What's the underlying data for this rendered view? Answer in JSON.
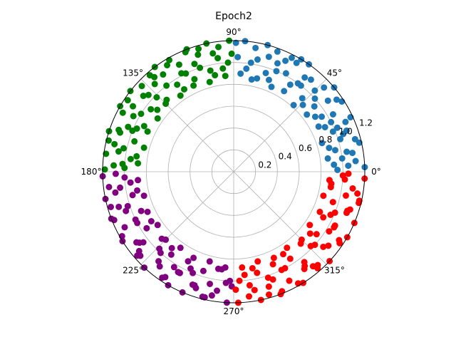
{
  "chart_data": {
    "type": "scatter",
    "projection": "polar",
    "title": "Epoch2",
    "theta_ticks": [
      "0°",
      "45°",
      "90°",
      "135°",
      "180°",
      "225°",
      "270°",
      "315°"
    ],
    "r_ticks": [
      "0.2",
      "0.4",
      "0.6",
      "0.8",
      "1.0",
      "1.2"
    ],
    "r_tick_values": [
      0.2,
      0.4,
      0.6,
      0.8,
      1.0,
      1.2
    ],
    "rlim": [
      0,
      1.2
    ],
    "grid": true,
    "series": [
      {
        "color": "#1f77b4",
        "theta_range_deg": [
          0,
          90
        ],
        "points": [
          [
            85,
            1.2
          ],
          [
            80,
            1.15
          ],
          [
            75,
            1.2
          ],
          [
            70,
            1.17
          ],
          [
            65,
            1.12
          ],
          [
            60,
            1.15
          ],
          [
            55,
            1.2
          ],
          [
            50,
            1.1
          ],
          [
            45,
            1.05
          ],
          [
            40,
            1.2
          ],
          [
            35,
            1.15
          ],
          [
            30,
            1.05
          ],
          [
            25,
            1.18
          ],
          [
            20,
            1.1
          ],
          [
            15,
            1.15
          ],
          [
            10,
            1.05
          ],
          [
            5,
            1.12
          ],
          [
            2,
            1.2
          ],
          [
            88,
            1.05
          ],
          [
            83,
            0.95
          ],
          [
            78,
            1.05
          ],
          [
            72,
            0.95
          ],
          [
            67,
            1.0
          ],
          [
            62,
            1.02
          ],
          [
            57,
            0.95
          ],
          [
            52,
            1.0
          ],
          [
            47,
            0.92
          ],
          [
            42,
            1.0
          ],
          [
            37,
            1.08
          ],
          [
            32,
            0.95
          ],
          [
            27,
            1.0
          ],
          [
            22,
            0.98
          ],
          [
            17,
            1.02
          ],
          [
            12,
            0.95
          ],
          [
            7,
            1.0
          ],
          [
            4,
            0.92
          ],
          [
            86,
            0.9
          ],
          [
            76,
            0.88
          ],
          [
            66,
            0.85
          ],
          [
            58,
            0.87
          ],
          [
            48,
            0.82
          ],
          [
            38,
            0.85
          ],
          [
            28,
            0.88
          ],
          [
            18,
            0.85
          ],
          [
            8,
            0.87
          ],
          [
            73,
            1.1
          ],
          [
            63,
            1.17
          ],
          [
            53,
            1.08
          ],
          [
            43,
            1.13
          ],
          [
            33,
            1.18
          ],
          [
            23,
            1.03
          ],
          [
            13,
            1.18
          ],
          [
            3,
            1.05
          ],
          [
            81,
            1.01
          ],
          [
            69,
            0.9
          ],
          [
            59,
            1.2
          ],
          [
            44,
            0.88
          ],
          [
            34,
            0.9
          ],
          [
            24,
            1.12
          ],
          [
            14,
            0.9
          ],
          [
            89,
            1.18
          ],
          [
            79,
            0.86
          ],
          [
            54,
            1.0
          ],
          [
            39,
            0.95
          ],
          [
            19,
            1.06
          ],
          [
            9,
            1.1
          ],
          [
            1,
            0.95
          ],
          [
            68,
            1.07
          ],
          [
            26,
            0.93
          ]
        ]
      },
      {
        "color": "#008000",
        "theta_range_deg": [
          90,
          180
        ],
        "points": [
          [
            92,
            1.2
          ],
          [
            97,
            1.15
          ],
          [
            102,
            1.2
          ],
          [
            107,
            1.12
          ],
          [
            112,
            1.18
          ],
          [
            117,
            1.1
          ],
          [
            122,
            1.15
          ],
          [
            127,
            1.2
          ],
          [
            132,
            1.08
          ],
          [
            137,
            1.15
          ],
          [
            142,
            1.2
          ],
          [
            147,
            1.1
          ],
          [
            152,
            1.15
          ],
          [
            157,
            1.05
          ],
          [
            162,
            1.2
          ],
          [
            167,
            1.12
          ],
          [
            172,
            1.18
          ],
          [
            177,
            1.1
          ],
          [
            93,
            1.0
          ],
          [
            98,
            1.05
          ],
          [
            103,
            0.95
          ],
          [
            108,
            1.0
          ],
          [
            113,
            0.92
          ],
          [
            118,
            1.02
          ],
          [
            123,
            0.95
          ],
          [
            128,
            1.0
          ],
          [
            133,
            0.9
          ],
          [
            138,
            1.05
          ],
          [
            143,
            0.95
          ],
          [
            148,
            1.0
          ],
          [
            153,
            0.92
          ],
          [
            158,
            1.0
          ],
          [
            163,
            0.95
          ],
          [
            168,
            1.03
          ],
          [
            173,
            0.95
          ],
          [
            178,
            1.0
          ],
          [
            95,
            0.88
          ],
          [
            105,
            0.85
          ],
          [
            115,
            0.87
          ],
          [
            125,
            0.85
          ],
          [
            135,
            0.88
          ],
          [
            145,
            0.85
          ],
          [
            155,
            0.87
          ],
          [
            165,
            0.85
          ],
          [
            175,
            0.88
          ],
          [
            100,
            1.1
          ],
          [
            110,
            1.05
          ],
          [
            120,
            1.18
          ],
          [
            130,
            1.13
          ],
          [
            140,
            1.08
          ],
          [
            150,
            1.2
          ],
          [
            160,
            1.12
          ],
          [
            170,
            1.07
          ],
          [
            179,
            1.18
          ],
          [
            96,
            0.95
          ],
          [
            106,
            1.17
          ],
          [
            116,
            1.0
          ],
          [
            126,
            1.1
          ],
          [
            136,
            0.98
          ],
          [
            146,
            1.17
          ],
          [
            156,
            0.97
          ],
          [
            166,
            1.18
          ],
          [
            176,
            1.02
          ],
          [
            91,
            1.08
          ],
          [
            101,
            0.9
          ],
          [
            111,
            1.2
          ],
          [
            121,
            0.88
          ],
          [
            131,
            1.17
          ],
          [
            141,
            0.9
          ],
          [
            151,
            1.05
          ],
          [
            161,
            1.1
          ],
          [
            171,
            0.9
          ]
        ]
      },
      {
        "color": "#800080",
        "theta_range_deg": [
          180,
          270
        ],
        "points": [
          [
            182,
            1.2
          ],
          [
            187,
            1.15
          ],
          [
            192,
            1.2
          ],
          [
            197,
            1.1
          ],
          [
            202,
            1.18
          ],
          [
            207,
            1.12
          ],
          [
            212,
            1.2
          ],
          [
            217,
            1.08
          ],
          [
            222,
            1.15
          ],
          [
            227,
            1.2
          ],
          [
            232,
            1.1
          ],
          [
            237,
            1.15
          ],
          [
            242,
            1.05
          ],
          [
            247,
            1.2
          ],
          [
            252,
            1.12
          ],
          [
            257,
            1.18
          ],
          [
            262,
            1.1
          ],
          [
            267,
            1.2
          ],
          [
            183,
            1.0
          ],
          [
            188,
            1.05
          ],
          [
            193,
            0.95
          ],
          [
            198,
            1.02
          ],
          [
            203,
            0.92
          ],
          [
            208,
            1.0
          ],
          [
            213,
            0.95
          ],
          [
            218,
            1.05
          ],
          [
            223,
            0.9
          ],
          [
            228,
            1.0
          ],
          [
            233,
            0.95
          ],
          [
            238,
            1.03
          ],
          [
            243,
            0.92
          ],
          [
            248,
            1.0
          ],
          [
            253,
            0.95
          ],
          [
            258,
            1.05
          ],
          [
            263,
            0.9
          ],
          [
            268,
            1.0
          ],
          [
            185,
            0.88
          ],
          [
            195,
            0.85
          ],
          [
            205,
            0.87
          ],
          [
            215,
            0.85
          ],
          [
            225,
            0.88
          ],
          [
            235,
            0.85
          ],
          [
            245,
            0.87
          ],
          [
            255,
            0.85
          ],
          [
            265,
            0.88
          ],
          [
            190,
            1.1
          ],
          [
            200,
            1.05
          ],
          [
            210,
            1.18
          ],
          [
            220,
            1.13
          ],
          [
            230,
            1.07
          ],
          [
            240,
            1.2
          ],
          [
            250,
            1.1
          ],
          [
            260,
            1.15
          ],
          [
            269,
            1.05
          ],
          [
            186,
            0.95
          ],
          [
            196,
            1.17
          ],
          [
            206,
            1.0
          ],
          [
            216,
            1.1
          ],
          [
            226,
            0.98
          ],
          [
            236,
            1.17
          ],
          [
            246,
            0.97
          ],
          [
            256,
            1.18
          ],
          [
            266,
            1.02
          ],
          [
            181,
            1.08
          ],
          [
            191,
            0.9
          ],
          [
            201,
            1.2
          ],
          [
            211,
            0.88
          ],
          [
            221,
            1.17
          ],
          [
            231,
            0.9
          ],
          [
            241,
            1.05
          ],
          [
            251,
            1.1
          ],
          [
            261,
            0.9
          ]
        ]
      },
      {
        "color": "#ff0000",
        "theta_range_deg": [
          270,
          360
        ],
        "points": [
          [
            272,
            1.2
          ],
          [
            277,
            1.15
          ],
          [
            282,
            1.2
          ],
          [
            287,
            1.1
          ],
          [
            292,
            1.18
          ],
          [
            297,
            1.12
          ],
          [
            302,
            1.2
          ],
          [
            307,
            1.08
          ],
          [
            312,
            1.15
          ],
          [
            317,
            1.2
          ],
          [
            322,
            1.1
          ],
          [
            327,
            1.15
          ],
          [
            332,
            1.05
          ],
          [
            337,
            1.2
          ],
          [
            342,
            1.12
          ],
          [
            347,
            1.18
          ],
          [
            352,
            1.1
          ],
          [
            357,
            1.2
          ],
          [
            273,
            1.0
          ],
          [
            278,
            1.05
          ],
          [
            283,
            0.95
          ],
          [
            288,
            1.02
          ],
          [
            293,
            0.92
          ],
          [
            298,
            1.0
          ],
          [
            303,
            0.95
          ],
          [
            308,
            1.05
          ],
          [
            313,
            0.9
          ],
          [
            318,
            1.0
          ],
          [
            323,
            0.95
          ],
          [
            328,
            1.03
          ],
          [
            333,
            0.92
          ],
          [
            338,
            1.0
          ],
          [
            343,
            0.95
          ],
          [
            348,
            1.05
          ],
          [
            353,
            0.9
          ],
          [
            358,
            1.0
          ],
          [
            275,
            0.88
          ],
          [
            285,
            0.85
          ],
          [
            295,
            0.87
          ],
          [
            305,
            0.85
          ],
          [
            315,
            0.88
          ],
          [
            325,
            0.85
          ],
          [
            335,
            0.87
          ],
          [
            345,
            0.85
          ],
          [
            355,
            0.88
          ],
          [
            280,
            1.1
          ],
          [
            290,
            1.05
          ],
          [
            300,
            1.18
          ],
          [
            310,
            1.13
          ],
          [
            320,
            1.07
          ],
          [
            330,
            1.2
          ],
          [
            340,
            1.1
          ],
          [
            350,
            1.15
          ],
          [
            359,
            1.05
          ],
          [
            276,
            0.95
          ],
          [
            286,
            1.17
          ],
          [
            296,
            1.0
          ],
          [
            306,
            1.1
          ],
          [
            316,
            0.98
          ],
          [
            326,
            1.17
          ],
          [
            336,
            0.97
          ],
          [
            346,
            1.18
          ],
          [
            356,
            1.02
          ],
          [
            271,
            1.08
          ],
          [
            281,
            0.9
          ],
          [
            291,
            1.2
          ],
          [
            301,
            0.88
          ],
          [
            311,
            1.17
          ],
          [
            321,
            0.9
          ],
          [
            331,
            1.05
          ],
          [
            341,
            1.1
          ],
          [
            351,
            0.9
          ]
        ]
      }
    ]
  }
}
